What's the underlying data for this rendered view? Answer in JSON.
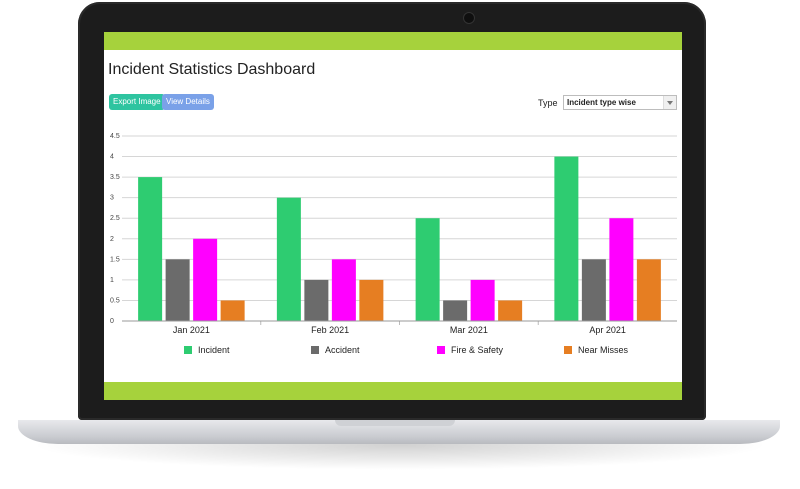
{
  "header": {
    "title": "Incident Statistics Dashboard"
  },
  "toolbar": {
    "export_label": "Export Image",
    "view_label": "View Details"
  },
  "filter": {
    "type_label": "Type",
    "type_value": "Incident type wise"
  },
  "colors": {
    "green_bar": "#a6d23c",
    "incident": "#2ecc71",
    "accident": "#6b6b6b",
    "fire_safety": "#ff00ff",
    "near_misses": "#e67e22"
  },
  "chart_data": {
    "type": "bar",
    "categories": [
      "Jan 2021",
      "Feb 2021",
      "Mar 2021",
      "Apr 2021"
    ],
    "series": [
      {
        "name": "Incident",
        "values": [
          3.5,
          3,
          2.5,
          4
        ],
        "color": "#2ecc71"
      },
      {
        "name": "Accident",
        "values": [
          1.5,
          1,
          0.5,
          1.5
        ],
        "color": "#6b6b6b"
      },
      {
        "name": "Fire & Safety",
        "values": [
          2,
          1.5,
          1,
          2.5
        ],
        "color": "#ff00ff"
      },
      {
        "name": "Near Misses",
        "values": [
          0.5,
          1,
          0.5,
          1.5
        ],
        "color": "#e67e22"
      }
    ],
    "ylim": [
      0,
      4.5
    ],
    "yticks": [
      "0",
      "0.5",
      "1",
      "1.5",
      "2",
      "2.5",
      "3",
      "3.5",
      "4",
      "4.5"
    ],
    "grid": true,
    "legend": "bottom"
  }
}
